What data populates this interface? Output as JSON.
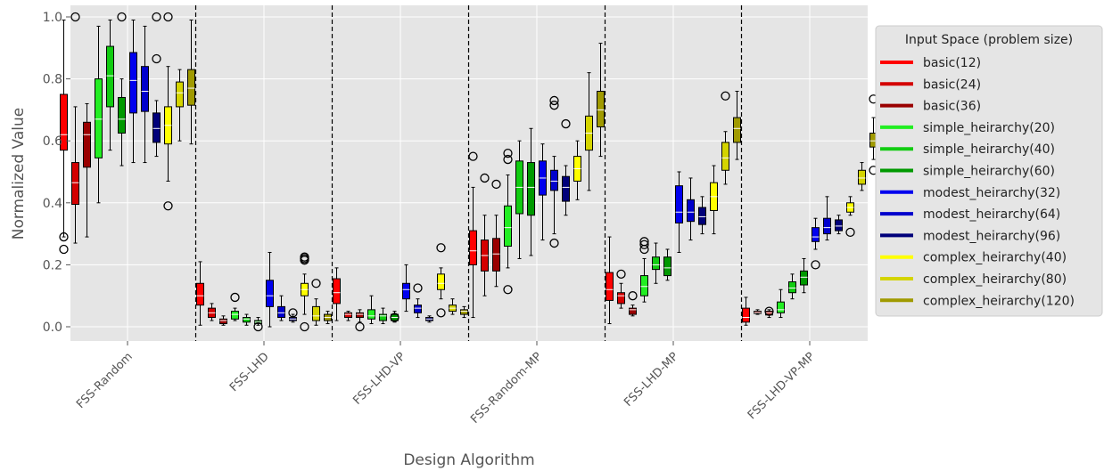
{
  "chart_data": {
    "type": "boxplot",
    "xlabel": "Design Algorithm",
    "ylabel": "Normalized Value",
    "ylim": [
      -0.05,
      1.03
    ],
    "yticks": [
      "0.0",
      "0.2",
      "0.4",
      "0.6",
      "0.8",
      "1.0"
    ],
    "ytick_values": [
      0,
      0.2,
      0.4,
      0.6,
      0.8,
      1.0
    ],
    "grid": true,
    "legend": {
      "title": "Input Space (problem size)",
      "placement": "outside-right"
    },
    "categories": [
      "FSS-Random",
      "FSS-LHD",
      "FSS-LHD-VP",
      "FSS-Random-MP",
      "FSS-LHD-MP",
      "FSS-LHD-VP-MP"
    ],
    "series": [
      {
        "name": "basic(12)",
        "color": "#ff0000",
        "boxes": [
          {
            "wl": 0.29,
            "q1": 0.57,
            "med": 0.62,
            "q3": 0.75,
            "wh": 0.99,
            "fliers": [
              0.29,
              0.25
            ]
          },
          {
            "wl": 0.005,
            "q1": 0.07,
            "med": 0.1,
            "q3": 0.14,
            "wh": 0.21,
            "fliers": []
          },
          {
            "wl": 0.02,
            "q1": 0.075,
            "med": 0.11,
            "q3": 0.155,
            "wh": 0.19,
            "fliers": []
          },
          {
            "wl": 0.03,
            "q1": 0.2,
            "med": 0.245,
            "q3": 0.31,
            "wh": 0.45,
            "fliers": [
              0.55
            ]
          },
          {
            "wl": 0.01,
            "q1": 0.085,
            "med": 0.12,
            "q3": 0.175,
            "wh": 0.29,
            "fliers": []
          },
          {
            "wl": 0.005,
            "q1": 0.015,
            "med": 0.03,
            "q3": 0.06,
            "wh": 0.095,
            "fliers": []
          }
        ]
      },
      {
        "name": "basic(24)",
        "color": "#d40000",
        "boxes": [
          {
            "wl": 0.27,
            "q1": 0.395,
            "med": 0.465,
            "q3": 0.53,
            "wh": 0.71,
            "fliers": [
              1.0
            ]
          },
          {
            "wl": 0.02,
            "q1": 0.03,
            "med": 0.045,
            "q3": 0.06,
            "wh": 0.075,
            "fliers": []
          },
          {
            "wl": 0.02,
            "q1": 0.03,
            "med": 0.04,
            "q3": 0.045,
            "wh": 0.05,
            "fliers": []
          },
          {
            "wl": 0.1,
            "q1": 0.18,
            "med": 0.23,
            "q3": 0.28,
            "wh": 0.36,
            "fliers": [
              0.48
            ]
          },
          {
            "wl": 0.06,
            "q1": 0.075,
            "med": 0.1,
            "q3": 0.11,
            "wh": 0.14,
            "fliers": [
              0.17
            ]
          },
          {
            "wl": 0.04,
            "q1": 0.043,
            "med": 0.046,
            "q3": 0.05,
            "wh": 0.055,
            "fliers": []
          }
        ]
      },
      {
        "name": "basic(36)",
        "color": "#9a0000",
        "boxes": [
          {
            "wl": 0.29,
            "q1": 0.515,
            "med": 0.62,
            "q3": 0.66,
            "wh": 0.72,
            "fliers": []
          },
          {
            "wl": 0.005,
            "q1": 0.01,
            "med": 0.02,
            "q3": 0.025,
            "wh": 0.035,
            "fliers": []
          },
          {
            "wl": 0.015,
            "q1": 0.03,
            "med": 0.04,
            "q3": 0.045,
            "wh": 0.055,
            "fliers": [
              0.0
            ]
          },
          {
            "wl": 0.13,
            "q1": 0.18,
            "med": 0.235,
            "q3": 0.285,
            "wh": 0.36,
            "fliers": [
              0.46
            ]
          },
          {
            "wl": 0.035,
            "q1": 0.04,
            "med": 0.055,
            "q3": 0.06,
            "wh": 0.07,
            "fliers": [
              0.1
            ]
          },
          {
            "wl": 0.03,
            "q1": 0.038,
            "med": 0.045,
            "q3": 0.05,
            "wh": 0.055,
            "fliers": [
              0.05
            ]
          }
        ]
      },
      {
        "name": "simple_heirarchy(20)",
        "color": "#22ee22",
        "boxes": [
          {
            "wl": 0.4,
            "q1": 0.545,
            "med": 0.67,
            "q3": 0.8,
            "wh": 0.97,
            "fliers": []
          },
          {
            "wl": 0.02,
            "q1": 0.025,
            "med": 0.04,
            "q3": 0.05,
            "wh": 0.06,
            "fliers": [
              0.095
            ]
          },
          {
            "wl": 0.01,
            "q1": 0.025,
            "med": 0.035,
            "q3": 0.055,
            "wh": 0.1,
            "fliers": []
          },
          {
            "wl": 0.19,
            "q1": 0.26,
            "med": 0.32,
            "q3": 0.39,
            "wh": 0.49,
            "fliers": [
              0.12,
              0.54,
              0.56
            ]
          },
          {
            "wl": 0.08,
            "q1": 0.1,
            "med": 0.13,
            "q3": 0.165,
            "wh": 0.22,
            "fliers": [
              0.25,
              0.265,
              0.275
            ]
          },
          {
            "wl": 0.03,
            "q1": 0.045,
            "med": 0.055,
            "q3": 0.08,
            "wh": 0.12,
            "fliers": []
          }
        ]
      },
      {
        "name": "simple_heirarchy(40)",
        "color": "#11cc11",
        "boxes": [
          {
            "wl": 0.57,
            "q1": 0.71,
            "med": 0.81,
            "q3": 0.905,
            "wh": 0.99,
            "fliers": []
          },
          {
            "wl": 0.005,
            "q1": 0.015,
            "med": 0.025,
            "q3": 0.03,
            "wh": 0.04,
            "fliers": []
          },
          {
            "wl": 0.01,
            "q1": 0.02,
            "med": 0.035,
            "q3": 0.04,
            "wh": 0.06,
            "fliers": []
          },
          {
            "wl": 0.22,
            "q1": 0.365,
            "med": 0.45,
            "q3": 0.535,
            "wh": 0.6,
            "fliers": []
          },
          {
            "wl": 0.14,
            "q1": 0.185,
            "med": 0.2,
            "q3": 0.225,
            "wh": 0.27,
            "fliers": []
          },
          {
            "wl": 0.09,
            "q1": 0.11,
            "med": 0.125,
            "q3": 0.145,
            "wh": 0.17,
            "fliers": []
          }
        ]
      },
      {
        "name": "simple_heirarchy(60)",
        "color": "#009900",
        "boxes": [
          {
            "wl": 0.52,
            "q1": 0.625,
            "med": 0.67,
            "q3": 0.74,
            "wh": 0.8,
            "fliers": [
              1.0
            ]
          },
          {
            "wl": 0.005,
            "q1": 0.01,
            "med": 0.015,
            "q3": 0.02,
            "wh": 0.03,
            "fliers": [
              0.0
            ]
          },
          {
            "wl": 0.015,
            "q1": 0.02,
            "med": 0.03,
            "q3": 0.04,
            "wh": 0.05,
            "fliers": [
              0.03
            ]
          },
          {
            "wl": 0.23,
            "q1": 0.36,
            "med": 0.45,
            "q3": 0.53,
            "wh": 0.64,
            "fliers": []
          },
          {
            "wl": 0.15,
            "q1": 0.165,
            "med": 0.19,
            "q3": 0.225,
            "wh": 0.25,
            "fliers": []
          },
          {
            "wl": 0.11,
            "q1": 0.135,
            "med": 0.16,
            "q3": 0.18,
            "wh": 0.22,
            "fliers": []
          }
        ]
      },
      {
        "name": "modest_heirarchy(32)",
        "color": "#0000ee",
        "boxes": [
          {
            "wl": 0.53,
            "q1": 0.69,
            "med": 0.795,
            "q3": 0.885,
            "wh": 0.99,
            "fliers": []
          },
          {
            "wl": 0.0,
            "q1": 0.065,
            "med": 0.1,
            "q3": 0.15,
            "wh": 0.24,
            "fliers": []
          },
          {
            "wl": 0.05,
            "q1": 0.09,
            "med": 0.12,
            "q3": 0.14,
            "wh": 0.2,
            "fliers": []
          },
          {
            "wl": 0.28,
            "q1": 0.425,
            "med": 0.48,
            "q3": 0.535,
            "wh": 0.59,
            "fliers": []
          },
          {
            "wl": 0.24,
            "q1": 0.335,
            "med": 0.37,
            "q3": 0.455,
            "wh": 0.5,
            "fliers": []
          },
          {
            "wl": 0.25,
            "q1": 0.275,
            "med": 0.29,
            "q3": 0.32,
            "wh": 0.35,
            "fliers": [
              0.2
            ]
          }
        ]
      },
      {
        "name": "modest_heirarchy(64)",
        "color": "#0000cc",
        "boxes": [
          {
            "wl": 0.53,
            "q1": 0.695,
            "med": 0.76,
            "q3": 0.84,
            "wh": 0.97,
            "fliers": []
          },
          {
            "wl": 0.02,
            "q1": 0.03,
            "med": 0.045,
            "q3": 0.065,
            "wh": 0.1,
            "fliers": []
          },
          {
            "wl": 0.03,
            "q1": 0.045,
            "med": 0.06,
            "q3": 0.07,
            "wh": 0.09,
            "fliers": [
              0.125
            ]
          },
          {
            "wl": 0.3,
            "q1": 0.44,
            "med": 0.47,
            "q3": 0.505,
            "wh": 0.55,
            "fliers": [
              0.715,
              0.73,
              0.27
            ]
          },
          {
            "wl": 0.28,
            "q1": 0.34,
            "med": 0.37,
            "q3": 0.41,
            "wh": 0.48,
            "fliers": []
          },
          {
            "wl": 0.28,
            "q1": 0.3,
            "med": 0.32,
            "q3": 0.35,
            "wh": 0.42,
            "fliers": []
          }
        ]
      },
      {
        "name": "modest_heirarchy(96)",
        "color": "#00007a",
        "boxes": [
          {
            "wl": 0.55,
            "q1": 0.595,
            "med": 0.64,
            "q3": 0.69,
            "wh": 0.73,
            "fliers": [
              1.0,
              0.865
            ]
          },
          {
            "wl": 0.015,
            "q1": 0.02,
            "med": 0.025,
            "q3": 0.03,
            "wh": 0.04,
            "fliers": [
              0.045
            ]
          },
          {
            "wl": 0.015,
            "q1": 0.02,
            "med": 0.025,
            "q3": 0.03,
            "wh": 0.035,
            "fliers": []
          },
          {
            "wl": 0.36,
            "q1": 0.405,
            "med": 0.45,
            "q3": 0.485,
            "wh": 0.52,
            "fliers": [
              0.655
            ]
          },
          {
            "wl": 0.3,
            "q1": 0.33,
            "med": 0.355,
            "q3": 0.385,
            "wh": 0.42,
            "fliers": []
          },
          {
            "wl": 0.3,
            "q1": 0.31,
            "med": 0.325,
            "q3": 0.345,
            "wh": 0.36,
            "fliers": []
          }
        ]
      },
      {
        "name": "complex_heirarchy(40)",
        "color": "#ffff00",
        "boxes": [
          {
            "wl": 0.47,
            "q1": 0.59,
            "med": 0.65,
            "q3": 0.71,
            "wh": 0.84,
            "fliers": [
              1.0,
              0.39
            ]
          },
          {
            "wl": 0.04,
            "q1": 0.1,
            "med": 0.12,
            "q3": 0.14,
            "wh": 0.17,
            "fliers": [
              0.215,
              0.22,
              0.225,
              0.0
            ]
          },
          {
            "wl": 0.09,
            "q1": 0.12,
            "med": 0.14,
            "q3": 0.17,
            "wh": 0.19,
            "fliers": [
              0.255,
              0.045
            ]
          },
          {
            "wl": 0.41,
            "q1": 0.47,
            "med": 0.51,
            "q3": 0.55,
            "wh": 0.6,
            "fliers": []
          },
          {
            "wl": 0.3,
            "q1": 0.375,
            "med": 0.42,
            "q3": 0.465,
            "wh": 0.52,
            "fliers": []
          },
          {
            "wl": 0.36,
            "q1": 0.37,
            "med": 0.385,
            "q3": 0.4,
            "wh": 0.42,
            "fliers": [
              0.305
            ]
          }
        ]
      },
      {
        "name": "complex_heirarchy(80)",
        "color": "#d4d400",
        "boxes": [
          {
            "wl": 0.6,
            "q1": 0.71,
            "med": 0.755,
            "q3": 0.79,
            "wh": 0.83,
            "fliers": []
          },
          {
            "wl": 0.005,
            "q1": 0.02,
            "med": 0.035,
            "q3": 0.065,
            "wh": 0.09,
            "fliers": [
              0.14
            ]
          },
          {
            "wl": 0.04,
            "q1": 0.05,
            "med": 0.06,
            "q3": 0.07,
            "wh": 0.09,
            "fliers": []
          },
          {
            "wl": 0.44,
            "q1": 0.57,
            "med": 0.625,
            "q3": 0.68,
            "wh": 0.82,
            "fliers": []
          },
          {
            "wl": 0.46,
            "q1": 0.505,
            "med": 0.545,
            "q3": 0.595,
            "wh": 0.63,
            "fliers": [
              0.745
            ]
          },
          {
            "wl": 0.44,
            "q1": 0.46,
            "med": 0.48,
            "q3": 0.505,
            "wh": 0.53,
            "fliers": []
          }
        ]
      },
      {
        "name": "complex_heirarchy(120)",
        "color": "#a09a00",
        "boxes": [
          {
            "wl": 0.59,
            "q1": 0.715,
            "med": 0.77,
            "q3": 0.83,
            "wh": 0.99,
            "fliers": []
          },
          {
            "wl": 0.01,
            "q1": 0.02,
            "med": 0.03,
            "q3": 0.04,
            "wh": 0.05,
            "fliers": []
          },
          {
            "wl": 0.03,
            "q1": 0.04,
            "med": 0.05,
            "q3": 0.055,
            "wh": 0.065,
            "fliers": []
          },
          {
            "wl": 0.55,
            "q1": 0.645,
            "med": 0.7,
            "q3": 0.76,
            "wh": 0.915,
            "fliers": []
          },
          {
            "wl": 0.54,
            "q1": 0.595,
            "med": 0.64,
            "q3": 0.675,
            "wh": 0.76,
            "fliers": []
          },
          {
            "wl": 0.54,
            "q1": 0.58,
            "med": 0.6,
            "q3": 0.625,
            "wh": 0.675,
            "fliers": [
              0.735,
              0.505
            ]
          }
        ]
      }
    ]
  }
}
